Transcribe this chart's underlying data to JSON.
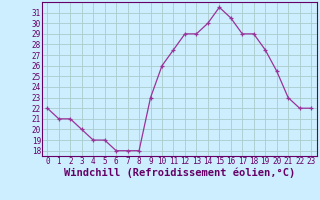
{
  "x": [
    0,
    1,
    2,
    3,
    4,
    5,
    6,
    7,
    8,
    9,
    10,
    11,
    12,
    13,
    14,
    15,
    16,
    17,
    18,
    19,
    20,
    21,
    22,
    23
  ],
  "y": [
    22,
    21,
    21,
    20,
    19,
    19,
    18,
    18,
    18,
    23,
    26,
    27.5,
    29,
    29,
    30,
    31.5,
    30.5,
    29,
    29,
    27.5,
    25.5,
    23,
    22,
    22
  ],
  "line_color": "#993399",
  "marker": "+",
  "bg_color": "#cceeff",
  "grid_color": "#aacccc",
  "axis_color": "#660066",
  "xlabel": "Windchill (Refroidissement éolien,°C)",
  "xlim": [
    -0.5,
    23.5
  ],
  "ylim": [
    17.5,
    32
  ],
  "yticks": [
    18,
    19,
    20,
    21,
    22,
    23,
    24,
    25,
    26,
    27,
    28,
    29,
    30,
    31
  ],
  "xticks": [
    0,
    1,
    2,
    3,
    4,
    5,
    6,
    7,
    8,
    9,
    10,
    11,
    12,
    13,
    14,
    15,
    16,
    17,
    18,
    19,
    20,
    21,
    22,
    23
  ],
  "tick_fontsize": 5.5,
  "xlabel_fontsize": 7.5
}
